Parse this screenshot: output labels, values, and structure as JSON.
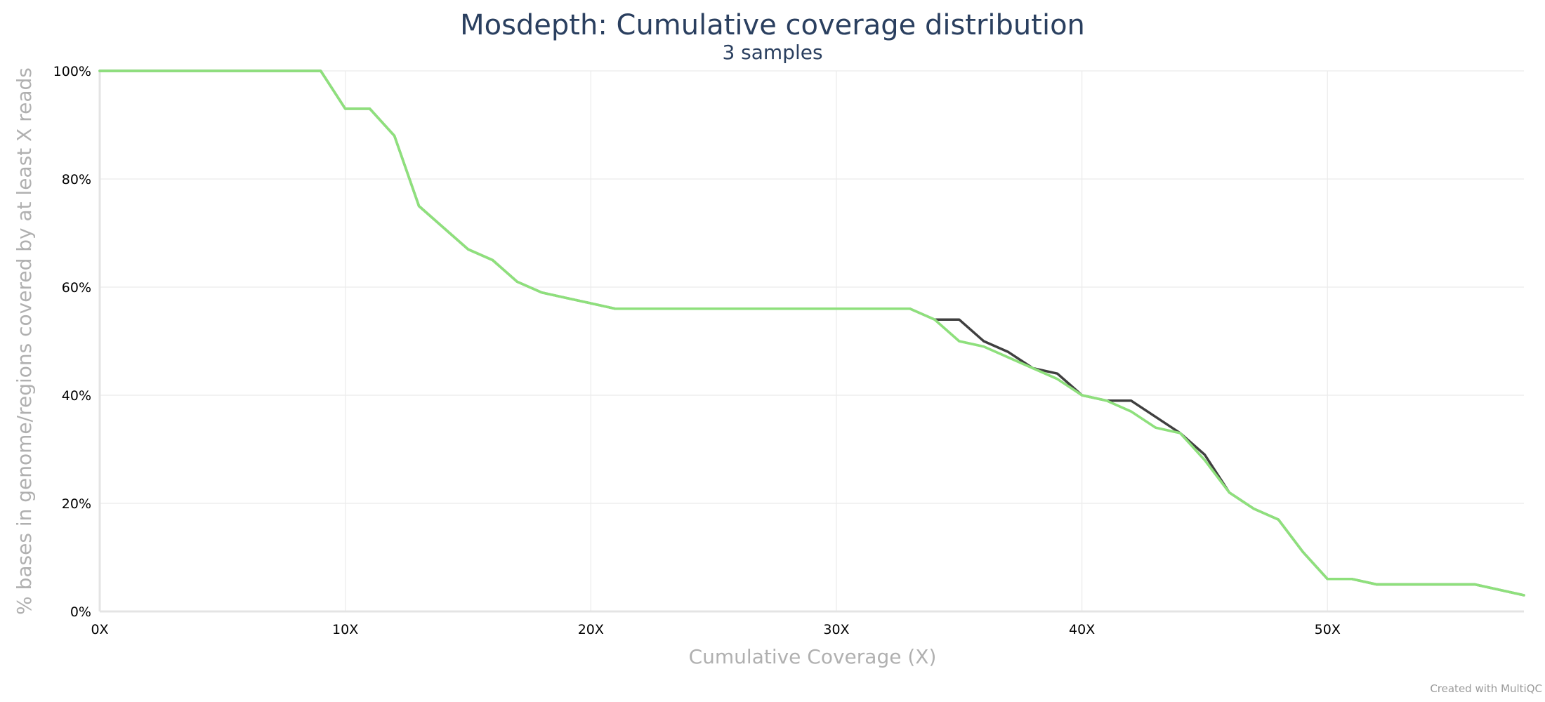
{
  "chart_data": {
    "type": "line",
    "title": "Mosdepth: Cumulative coverage distribution",
    "subtitle": "3 samples",
    "xlabel": "Cumulative Coverage (X)",
    "ylabel": "% bases in genome/regions covered by at least X reads",
    "xlim": [
      0,
      58
    ],
    "ylim": [
      0,
      100
    ],
    "x_ticks": [
      0,
      10,
      20,
      30,
      40,
      50
    ],
    "x_tick_labels": [
      "0X",
      "10X",
      "20X",
      "30X",
      "40X",
      "50X"
    ],
    "y_ticks": [
      0,
      20,
      40,
      60,
      80,
      100
    ],
    "y_tick_labels": [
      "0%",
      "20%",
      "40%",
      "60%",
      "80%",
      "100%"
    ],
    "grid": true,
    "legend": "none",
    "series": [
      {
        "color": "#3f3f3f",
        "x": [
          0,
          1,
          2,
          3,
          4,
          5,
          6,
          7,
          8,
          9,
          10,
          11,
          12,
          13,
          14,
          15,
          16,
          17,
          18,
          19,
          20,
          21,
          22,
          23,
          24,
          25,
          26,
          27,
          28,
          29,
          30,
          31,
          32,
          33,
          34,
          35,
          36,
          37,
          38,
          39,
          40,
          41,
          42,
          43,
          44,
          45,
          46,
          47,
          48,
          49,
          50,
          51,
          52,
          53,
          54,
          55,
          56,
          57,
          58
        ],
        "y": [
          100,
          100,
          100,
          100,
          100,
          100,
          100,
          100,
          100,
          100,
          93,
          93,
          88,
          75,
          71,
          67,
          65,
          61,
          59,
          58,
          57,
          56,
          56,
          56,
          56,
          56,
          56,
          56,
          56,
          56,
          56,
          56,
          56,
          56,
          54,
          54,
          50,
          48,
          45,
          44,
          40,
          39,
          39,
          36,
          33,
          29,
          22,
          19,
          17,
          11,
          6,
          6,
          5,
          5,
          5,
          5,
          5,
          4,
          3
        ]
      },
      {
        "color": "#b2e6a8",
        "x": [
          0,
          1,
          2,
          3,
          4,
          5,
          6,
          7,
          8,
          9,
          10,
          11,
          12,
          13,
          14,
          15,
          16,
          17,
          18,
          19,
          20,
          21,
          22,
          23,
          24,
          25,
          26,
          27,
          28,
          29,
          30,
          31,
          32,
          33,
          34,
          35,
          36,
          37,
          38,
          39,
          40,
          41,
          42,
          43,
          44,
          45,
          46,
          47,
          48,
          49,
          50,
          51,
          52,
          53,
          54,
          55,
          56,
          57,
          58
        ],
        "y": [
          100,
          100,
          100,
          100,
          100,
          100,
          100,
          100,
          100,
          100,
          93,
          93,
          88,
          75,
          71,
          67,
          65,
          61,
          59,
          58,
          57,
          56,
          56,
          56,
          56,
          56,
          56,
          56,
          56,
          56,
          56,
          56,
          56,
          56,
          54,
          50,
          49,
          47,
          45,
          43,
          40,
          39,
          37,
          34,
          33,
          28,
          22,
          19,
          17,
          11,
          6,
          6,
          5,
          5,
          5,
          5,
          5,
          4,
          3
        ]
      },
      {
        "color": "#8ee07c",
        "x": [
          0,
          1,
          2,
          3,
          4,
          5,
          6,
          7,
          8,
          9,
          10,
          11,
          12,
          13,
          14,
          15,
          16,
          17,
          18,
          19,
          20,
          21,
          22,
          23,
          24,
          25,
          26,
          27,
          28,
          29,
          30,
          31,
          32,
          33,
          34,
          35,
          36,
          37,
          38,
          39,
          40,
          41,
          42,
          43,
          44,
          45,
          46,
          47,
          48,
          49,
          50,
          51,
          52,
          53,
          54,
          55,
          56,
          57,
          58
        ],
        "y": [
          100,
          100,
          100,
          100,
          100,
          100,
          100,
          100,
          100,
          100,
          93,
          93,
          88,
          75,
          71,
          67,
          65,
          61,
          59,
          58,
          57,
          56,
          56,
          56,
          56,
          56,
          56,
          56,
          56,
          56,
          56,
          56,
          56,
          56,
          54,
          50,
          49,
          47,
          45,
          43,
          40,
          39,
          37,
          34,
          33,
          28,
          22,
          19,
          17,
          11,
          6,
          6,
          5,
          5,
          5,
          5,
          5,
          4,
          3
        ]
      }
    ]
  },
  "credit": "Created with MultiQC"
}
